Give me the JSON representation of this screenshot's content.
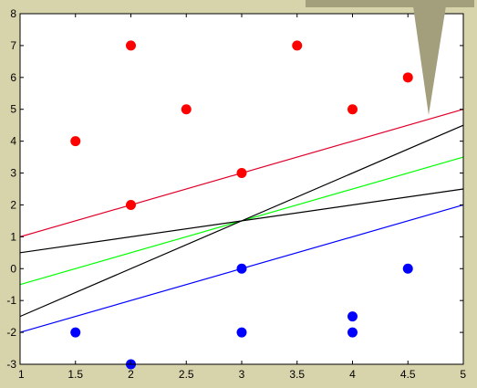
{
  "chart_data": {
    "type": "scatter",
    "title": "",
    "xlabel": "",
    "ylabel": "",
    "xlim": [
      1,
      5
    ],
    "ylim": [
      -3,
      8
    ],
    "grid": false,
    "x_ticks": [
      "1",
      "1.5",
      "2",
      "2.5",
      "3",
      "3.5",
      "4",
      "4.5",
      "5"
    ],
    "y_ticks": [
      "-3",
      "-2",
      "-1",
      "0",
      "1",
      "2",
      "3",
      "4",
      "5",
      "6",
      "7",
      "8"
    ],
    "series": [
      {
        "kind": "points",
        "color": "#ff0000",
        "points": [
          [
            1.5,
            4
          ],
          [
            2,
            7
          ],
          [
            2,
            2
          ],
          [
            2.5,
            5
          ],
          [
            3,
            3
          ],
          [
            3.5,
            7
          ],
          [
            4,
            5
          ],
          [
            4.5,
            6
          ]
        ]
      },
      {
        "kind": "points",
        "color": "#0000ff",
        "points": [
          [
            1.5,
            -2
          ],
          [
            2,
            -3
          ],
          [
            3,
            0
          ],
          [
            3,
            -2
          ],
          [
            4,
            -1.5
          ],
          [
            4,
            -2
          ],
          [
            4.5,
            0
          ]
        ]
      },
      {
        "kind": "line",
        "color": "#e0002a",
        "x": [
          1,
          5
        ],
        "y": [
          1,
          5
        ]
      },
      {
        "kind": "line",
        "color": "#0000ff",
        "x": [
          1,
          5
        ],
        "y": [
          -2,
          2
        ]
      },
      {
        "kind": "line",
        "color": "#00ff00",
        "x": [
          1,
          5
        ],
        "y": [
          -0.5,
          3.5
        ]
      },
      {
        "kind": "line",
        "color": "#000000",
        "x": [
          1,
          5
        ],
        "y": [
          -1.5,
          4.5
        ]
      },
      {
        "kind": "line",
        "color": "#000000",
        "x": [
          1,
          5
        ],
        "y": [
          0.5,
          2.5
        ]
      }
    ],
    "annotation_shape": "gray-triangle-pointer"
  },
  "colors": {
    "background": "#d7d4ac",
    "plot_bg": "#ffffff",
    "pointer_fill": "#a39e7b"
  }
}
